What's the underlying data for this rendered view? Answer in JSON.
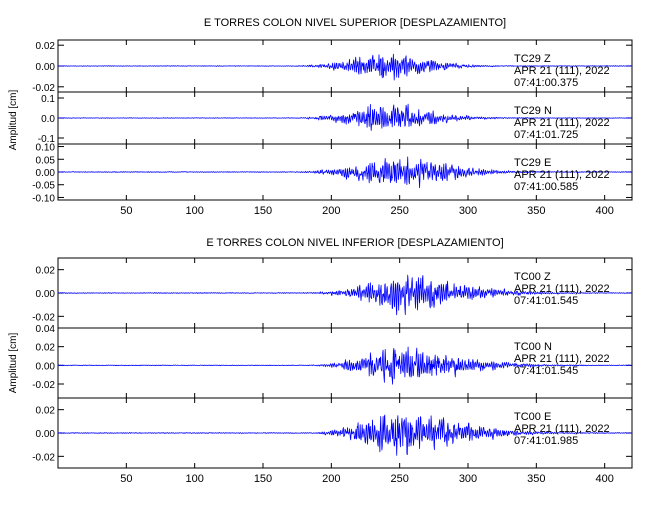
{
  "colors": {
    "trace": "#0000ff",
    "axis": "#000000",
    "background": "#ffffff"
  },
  "chart_data": [
    {
      "type": "line",
      "title": "E TORRES COLON NIVEL SUPERIOR [DESPLAZAMIENTO]",
      "ylabel": "Amplitud [cm]",
      "xlabel": "",
      "xlim": [
        0,
        420
      ],
      "xticks": [
        50,
        100,
        150,
        200,
        250,
        300,
        350,
        400
      ],
      "grid": false,
      "panels": [
        {
          "station": "TC29",
          "component": "Z",
          "date": "APR 21 (111), 2022",
          "time": "07:41:00.375",
          "ylim": [
            -0.025,
            0.025
          ],
          "yticks": [
            -0.02,
            0.0,
            0.02
          ],
          "ytick_labels": [
            "-0.02",
            "0.00",
            "0.02"
          ],
          "onset": 170,
          "center": 232,
          "width": 28,
          "peak": 0.021,
          "noise": 0.0004,
          "seed": 11
        },
        {
          "station": "TC29",
          "component": "N",
          "date": "APR 21 (111), 2022",
          "time": "07:41:01.725",
          "ylim": [
            -0.13,
            0.13
          ],
          "yticks": [
            -0.1,
            0.0,
            0.1
          ],
          "ytick_labels": [
            "-0.1",
            "0.0",
            "0.1"
          ],
          "onset": 170,
          "center": 232,
          "width": 30,
          "peak": 0.11,
          "noise": 0.002,
          "seed": 23
        },
        {
          "station": "TC29",
          "component": "E",
          "date": "APR 21 (111), 2022",
          "time": "07:41:00.585",
          "ylim": [
            -0.11,
            0.11
          ],
          "yticks": [
            -0.1,
            -0.05,
            0.0,
            0.05,
            0.1
          ],
          "ytick_labels": [
            "-0.10",
            "-0.05",
            "0.00",
            "0.05",
            "0.10"
          ],
          "onset": 170,
          "center": 240,
          "width": 34,
          "peak": 0.095,
          "noise": 0.002,
          "seed": 37
        }
      ]
    },
    {
      "type": "line",
      "title": "E TORRES COLON NIVEL INFERIOR [DESPLAZAMIENTO]",
      "ylabel": "Amplitud [cm]",
      "xlabel": "",
      "xlim": [
        0,
        420
      ],
      "xticks": [
        50,
        100,
        150,
        200,
        250,
        300,
        350,
        400
      ],
      "grid": false,
      "panels": [
        {
          "station": "TC00",
          "component": "Z",
          "date": "APR 21 (111), 2022",
          "time": "07:41:01.545",
          "ylim": [
            -0.03,
            0.03
          ],
          "yticks": [
            -0.02,
            0.0,
            0.02
          ],
          "ytick_labels": [
            "-0.02",
            "0.00",
            "0.02"
          ],
          "onset": 180,
          "center": 245,
          "width": 38,
          "peak": 0.024,
          "noise": 0.0005,
          "seed": 51
        },
        {
          "station": "TC00",
          "component": "N",
          "date": "APR 21 (111), 2022",
          "time": "07:41:01.545",
          "ylim": [
            -0.035,
            0.04
          ],
          "yticks": [
            -0.02,
            0.0,
            0.02,
            0.04
          ],
          "ytick_labels": [
            "-0.02",
            "0.00",
            "0.02",
            "0.04"
          ],
          "onset": 180,
          "center": 240,
          "width": 40,
          "peak": 0.03,
          "noise": 0.0005,
          "seed": 67
        },
        {
          "station": "TC00",
          "component": "E",
          "date": "APR 21 (111), 2022",
          "time": "07:41:01.985",
          "ylim": [
            -0.03,
            0.03
          ],
          "yticks": [
            -0.02,
            0.0,
            0.02
          ],
          "ytick_labels": [
            "-0.02",
            "0.00",
            "0.02"
          ],
          "onset": 180,
          "center": 240,
          "width": 40,
          "peak": 0.028,
          "noise": 0.0005,
          "seed": 83
        }
      ]
    }
  ]
}
